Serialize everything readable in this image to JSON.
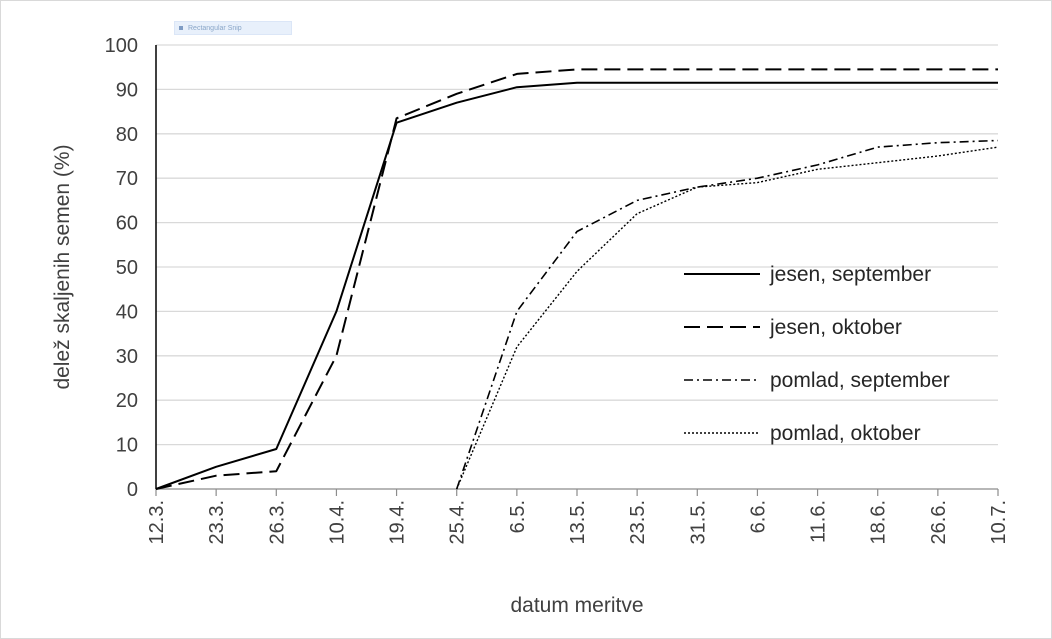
{
  "snip_label": "Rectangular Snip",
  "chart_data": {
    "type": "line",
    "title": "",
    "xlabel": "datum meritve",
    "ylabel": "delež skaljenih semen (%)",
    "ylim": [
      0,
      100
    ],
    "yticks": [
      0,
      10,
      20,
      30,
      40,
      50,
      60,
      70,
      80,
      90,
      100
    ],
    "categories": [
      "12.3.",
      "23.3.",
      "26.3.",
      "10.4.",
      "19.4.",
      "25.4.",
      "6.5.",
      "13.5.",
      "23.5.",
      "31.5.",
      "6.6.",
      "11.6.",
      "18.6.",
      "26.6.",
      "10.7."
    ],
    "grid": "horizontal",
    "legend_position": "right",
    "series": [
      {
        "name": "jesen, september",
        "style": "solid",
        "color": "#000000",
        "values": [
          0,
          5,
          9,
          40,
          82.5,
          87,
          90.5,
          91.5,
          91.5,
          91.5,
          91.5,
          91.5,
          91.5,
          91.5,
          91.5
        ]
      },
      {
        "name": "jesen, oktober",
        "style": "dash",
        "color": "#000000",
        "values": [
          0,
          3,
          4,
          30,
          83.5,
          89,
          93.5,
          94.5,
          94.5,
          94.5,
          94.5,
          94.5,
          94.5,
          94.5,
          94.5
        ]
      },
      {
        "name": "pomlad, september",
        "style": "dashdot",
        "color": "#000000",
        "values": [
          null,
          null,
          null,
          null,
          null,
          0,
          40,
          58,
          65,
          68,
          70,
          73,
          77,
          78,
          78.5
        ]
      },
      {
        "name": "pomlad, oktober",
        "style": "dot",
        "color": "#000000",
        "values": [
          null,
          null,
          null,
          null,
          null,
          0,
          32,
          49,
          62,
          68,
          69,
          72,
          73.5,
          75,
          77
        ]
      }
    ]
  }
}
